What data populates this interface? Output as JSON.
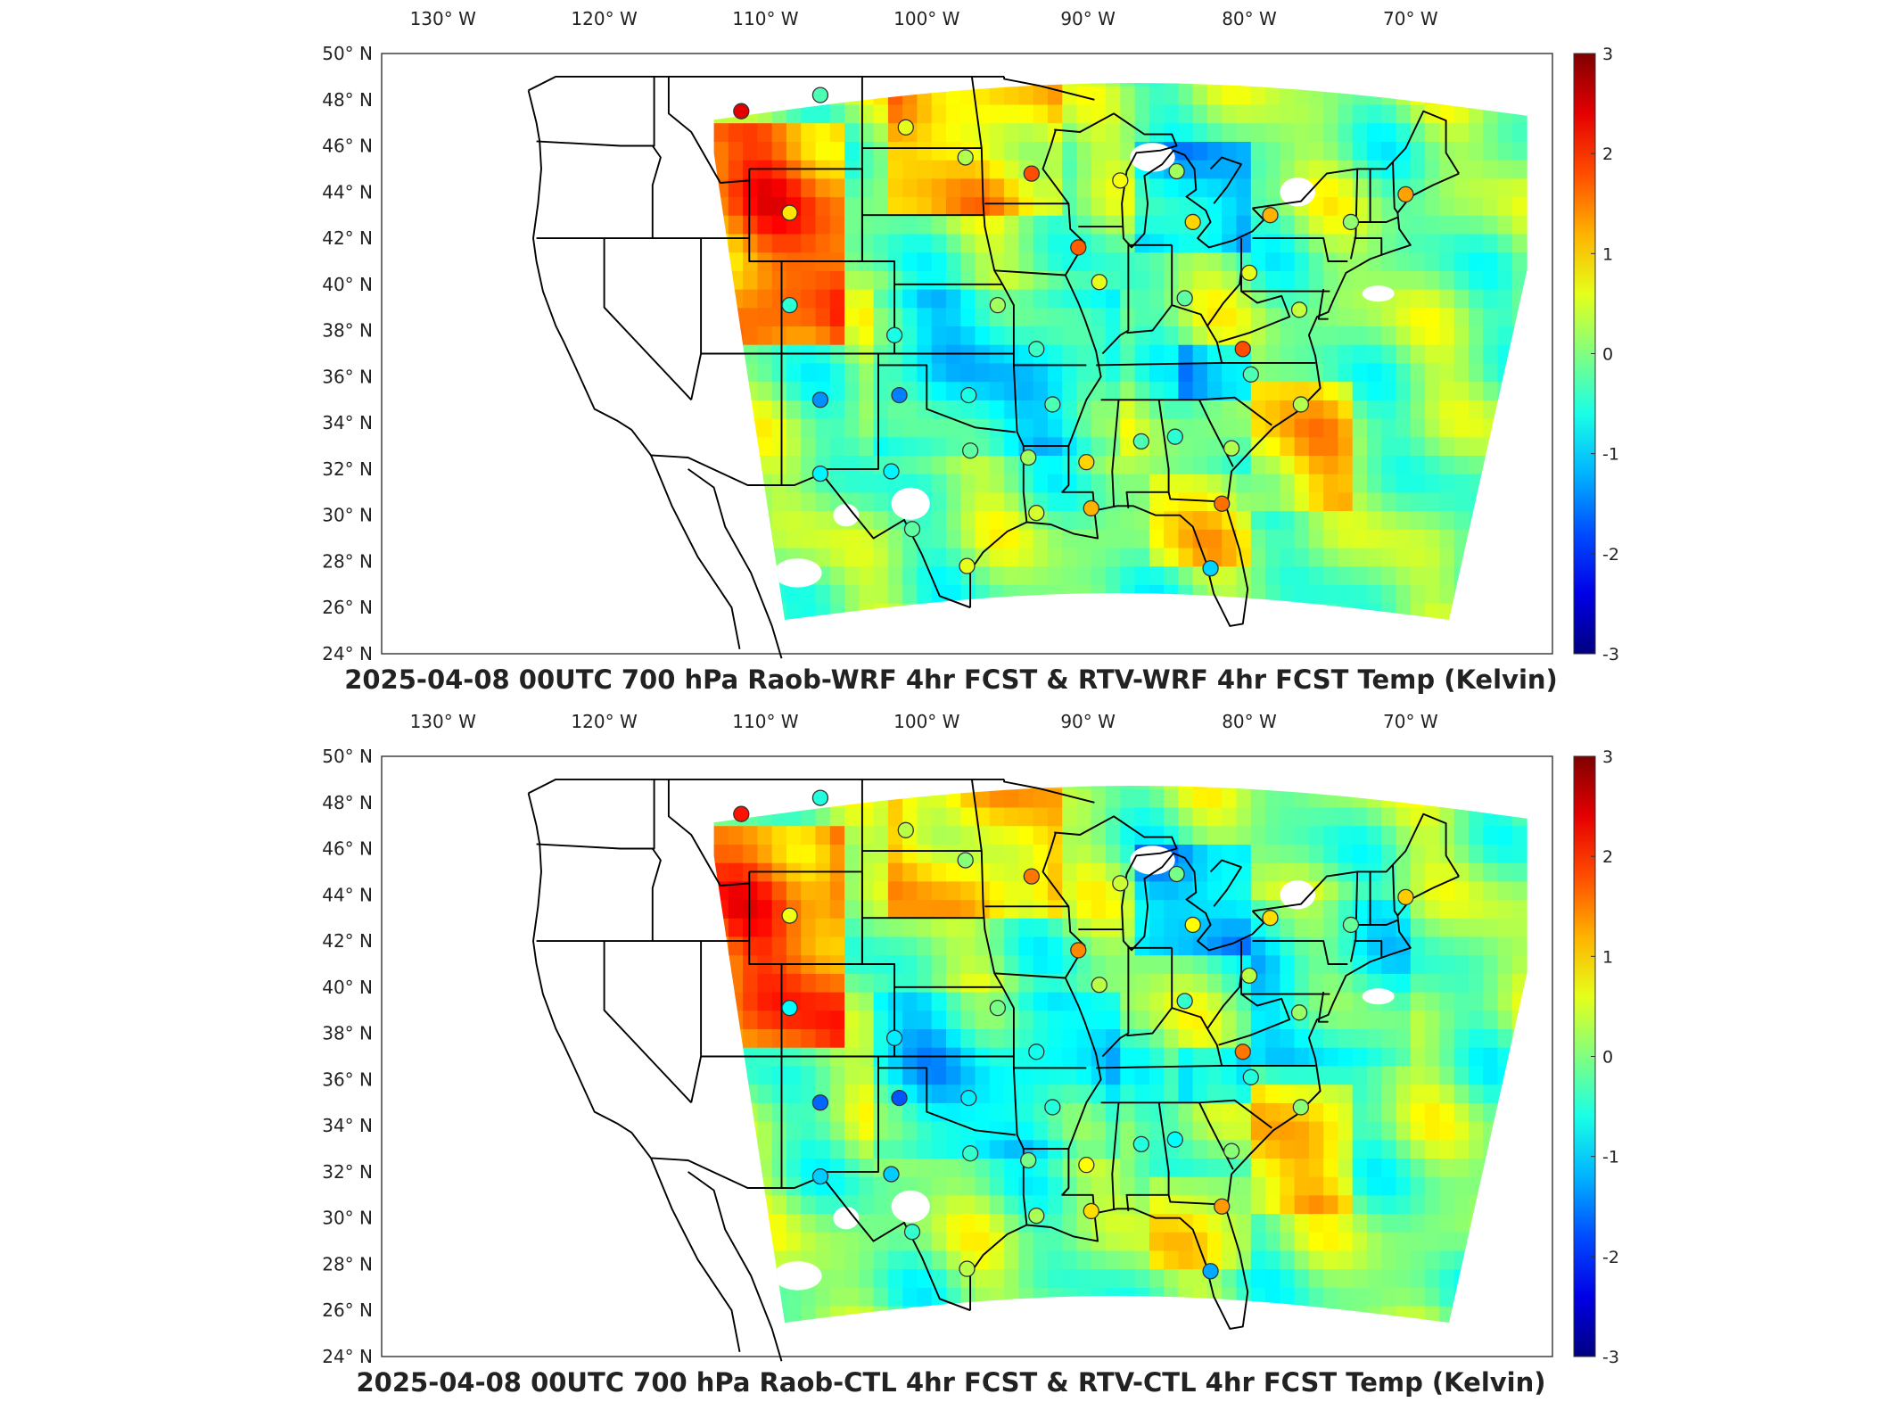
{
  "panels": [
    {
      "title": "2025-04-08 00UTC 700 hPa Raob-WRF 4hr FCST & RTV-WRF 4hr FCST Temp (Kelvin)",
      "variant": "wrf"
    },
    {
      "title": "2025-04-08 00UTC 700 hPa Raob-CTL 4hr FCST & RTV-CTL 4hr FCST Temp (Kelvin)",
      "variant": "ctl"
    }
  ],
  "map": {
    "lon_ticks": [
      {
        "deg": "130",
        "hemi": "W"
      },
      {
        "deg": "120",
        "hemi": "W"
      },
      {
        "deg": "110",
        "hemi": "W"
      },
      {
        "deg": "100",
        "hemi": "W"
      },
      {
        "deg": "90",
        "hemi": "W"
      },
      {
        "deg": "80",
        "hemi": "W"
      },
      {
        "deg": "70",
        "hemi": "W"
      }
    ],
    "lat_ticks": [
      {
        "deg": "50",
        "hemi": "N"
      },
      {
        "deg": "48",
        "hemi": "N"
      },
      {
        "deg": "46",
        "hemi": "N"
      },
      {
        "deg": "44",
        "hemi": "N"
      },
      {
        "deg": "42",
        "hemi": "N"
      },
      {
        "deg": "40",
        "hemi": "N"
      },
      {
        "deg": "38",
        "hemi": "N"
      },
      {
        "deg": "36",
        "hemi": "N"
      },
      {
        "deg": "34",
        "hemi": "N"
      },
      {
        "deg": "32",
        "hemi": "N"
      },
      {
        "deg": "30",
        "hemi": "N"
      },
      {
        "deg": "28",
        "hemi": "N"
      },
      {
        "deg": "26",
        "hemi": "N"
      },
      {
        "deg": "24",
        "hemi": "N"
      }
    ],
    "degree_symbol": "°"
  },
  "colorbar": {
    "colormap": "jet",
    "range": [
      -3,
      3
    ],
    "ticks": [
      "3",
      "2",
      "1",
      "0",
      "-1",
      "-2",
      "-3"
    ],
    "units": "Kelvin"
  },
  "stations": [
    {
      "lon": -111.5,
      "lat": 47.5,
      "value": 2.4
    },
    {
      "lon": -106.6,
      "lat": 48.2,
      "value": -0.3
    },
    {
      "lon": -101.3,
      "lat": 46.8,
      "value": 0.6
    },
    {
      "lon": -97.6,
      "lat": 45.5,
      "value": 0.3
    },
    {
      "lon": -93.5,
      "lat": 44.8,
      "value": 1.8
    },
    {
      "lon": -88.0,
      "lat": 44.5,
      "value": 0.7
    },
    {
      "lon": -84.5,
      "lat": 44.9,
      "value": 0.2
    },
    {
      "lon": -83.5,
      "lat": 42.7,
      "value": 1.0
    },
    {
      "lon": -78.7,
      "lat": 43.0,
      "value": 1.2
    },
    {
      "lon": -73.7,
      "lat": 42.7,
      "value": 0.1
    },
    {
      "lon": -70.3,
      "lat": 43.9,
      "value": 1.3
    },
    {
      "lon": -108.5,
      "lat": 43.1,
      "value": 0.9
    },
    {
      "lon": -90.6,
      "lat": 41.6,
      "value": 1.7
    },
    {
      "lon": -89.3,
      "lat": 40.1,
      "value": 0.6
    },
    {
      "lon": -84.0,
      "lat": 39.4,
      "value": -0.2
    },
    {
      "lon": -80.0,
      "lat": 40.5,
      "value": 0.6
    },
    {
      "lon": -108.5,
      "lat": 39.1,
      "value": -0.5
    },
    {
      "lon": -102.0,
      "lat": 37.8,
      "value": -0.6
    },
    {
      "lon": -95.6,
      "lat": 39.1,
      "value": 0.2
    },
    {
      "lon": -93.2,
      "lat": 37.2,
      "value": -0.4
    },
    {
      "lon": -80.4,
      "lat": 37.2,
      "value": 1.8
    },
    {
      "lon": -76.9,
      "lat": 38.9,
      "value": 0.4
    },
    {
      "lon": -106.6,
      "lat": 35.0,
      "value": -1.4
    },
    {
      "lon": -101.7,
      "lat": 35.2,
      "value": -1.5
    },
    {
      "lon": -97.4,
      "lat": 35.2,
      "value": -0.6
    },
    {
      "lon": -92.2,
      "lat": 34.8,
      "value": -0.3
    },
    {
      "lon": -79.9,
      "lat": 36.1,
      "value": -0.3
    },
    {
      "lon": -76.8,
      "lat": 34.8,
      "value": 0.3
    },
    {
      "lon": -106.6,
      "lat": 31.8,
      "value": -0.8
    },
    {
      "lon": -102.2,
      "lat": 31.9,
      "value": -0.8
    },
    {
      "lon": -97.3,
      "lat": 32.8,
      "value": -0.2
    },
    {
      "lon": -93.7,
      "lat": 32.5,
      "value": 0.2
    },
    {
      "lon": -90.1,
      "lat": 32.3,
      "value": 1.0
    },
    {
      "lon": -86.7,
      "lat": 33.2,
      "value": -0.3
    },
    {
      "lon": -84.6,
      "lat": 33.4,
      "value": -0.5
    },
    {
      "lon": -81.1,
      "lat": 32.9,
      "value": 0.3
    },
    {
      "lon": -100.9,
      "lat": 29.4,
      "value": -0.2
    },
    {
      "lon": -97.5,
      "lat": 27.8,
      "value": 0.6
    },
    {
      "lon": -93.2,
      "lat": 30.1,
      "value": 0.5
    },
    {
      "lon": -89.8,
      "lat": 30.3,
      "value": 1.2
    },
    {
      "lon": -81.7,
      "lat": 30.5,
      "value": 1.6
    },
    {
      "lon": -82.4,
      "lat": 27.7,
      "value": -1.0
    }
  ],
  "states_present": [
    "WA",
    "OR",
    "CA",
    "ID",
    "NV",
    "MT",
    "WY",
    "UT",
    "AZ",
    "CO",
    "NM",
    "ND",
    "SD",
    "NE",
    "KS",
    "OK",
    "TX",
    "MN",
    "IA",
    "MO",
    "AR",
    "LA",
    "WI",
    "IL",
    "MS",
    "AL",
    "GA",
    "FL",
    "TN",
    "KY",
    "IN",
    "OH",
    "MI",
    "WV",
    "VA",
    "NC",
    "SC",
    "PA",
    "NY",
    "NJ",
    "MD",
    "DE",
    "VT",
    "NH",
    "ME",
    "MA",
    "CT",
    "RI"
  ]
}
